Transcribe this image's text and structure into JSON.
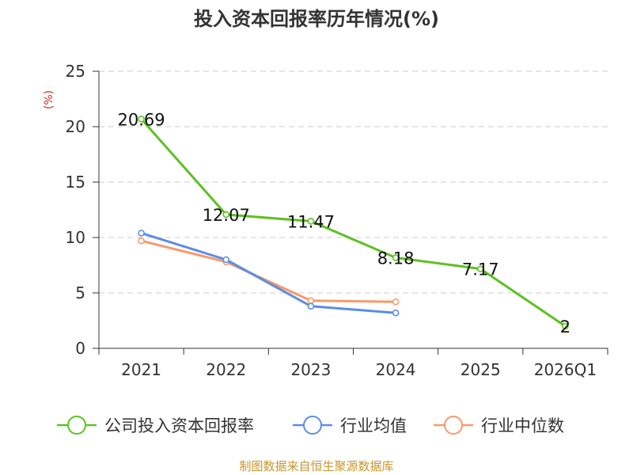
{
  "chart_data": {
    "type": "line",
    "title": "投入资本回报率历年情况(%)",
    "ylabel": "(%)",
    "xlabel": "",
    "categories": [
      "2021",
      "2022",
      "2023",
      "2024",
      "2025",
      "2026Q1"
    ],
    "ylim": [
      0,
      25
    ],
    "yticks": [
      0,
      5,
      10,
      15,
      20,
      25
    ],
    "grid": true,
    "legend_position": "bottom",
    "series": [
      {
        "name": "公司投入资本回报率",
        "color": "#5cc121",
        "values": [
          20.69,
          12.07,
          11.47,
          8.18,
          7.17,
          2
        ],
        "labels": [
          "20.69",
          "12.07",
          "11.47",
          "8.18",
          "7.17",
          "2"
        ]
      },
      {
        "name": "行业均值",
        "color": "#5b8ee6",
        "values": [
          10.4,
          8.0,
          3.8,
          3.2,
          null,
          null
        ]
      },
      {
        "name": "行业中位数",
        "color": "#f79a6a",
        "values": [
          9.7,
          7.8,
          4.3,
          4.2,
          null,
          null
        ]
      }
    ],
    "source": "制图数据来自恒生聚源数据库",
    "colors": {
      "axis": "#333333",
      "grid": "#cccccc",
      "ylabel": "#d42a2a",
      "source": "#c8962f"
    }
  }
}
